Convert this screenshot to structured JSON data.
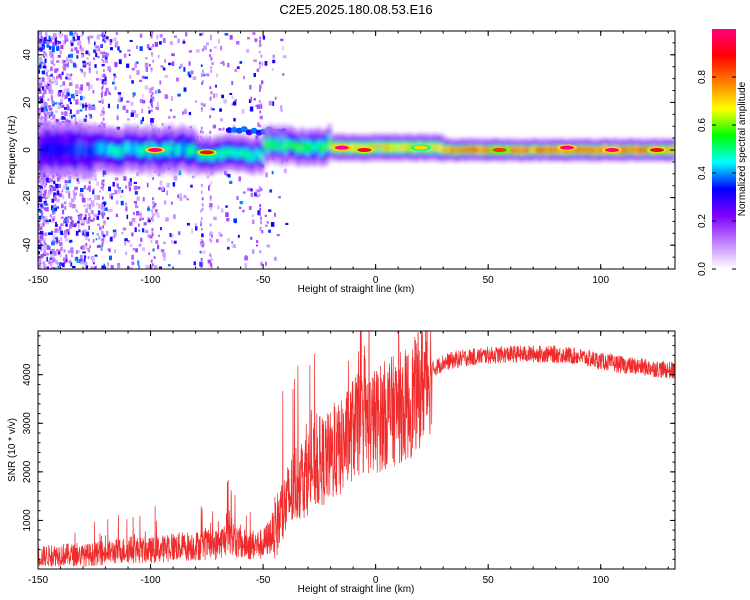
{
  "chart_data": [
    {
      "type": "heatmap",
      "title": "C2E5.2025.180.08.53.E16",
      "xlabel": "Height of straight line (km)",
      "ylabel": "Frequency (Hz)",
      "xlim": [
        -150,
        133
      ],
      "ylim": [
        -50,
        50
      ],
      "xticks": [
        -150,
        -100,
        -50,
        0,
        50,
        100
      ],
      "yticks": [
        -40,
        -20,
        0,
        20,
        40
      ],
      "colorbar": {
        "label": "Normalized spectral amplitude",
        "range": [
          0,
          1
        ],
        "ticks": [
          "0.0",
          "0.2",
          "0.4",
          "0.6",
          "0.8"
        ],
        "colormap": [
          "#ffffff",
          "#c080ff",
          "#8000ff",
          "#0000ff",
          "#00ffff",
          "#00ff00",
          "#ffff00",
          "#ff8000",
          "#ff0000",
          "#ff0080"
        ]
      },
      "band_segments": [
        {
          "x0": -150,
          "x1": -125,
          "center_hz": 0,
          "half_width_hz": 6,
          "peak": 0.35
        },
        {
          "x0": -125,
          "x1": -80,
          "center_hz": 0,
          "half_width_hz": 5,
          "peak": 0.45
        },
        {
          "x0": -80,
          "x1": -50,
          "center_hz": -2,
          "half_width_hz": 4,
          "peak": 0.5
        },
        {
          "x0": -50,
          "x1": -20,
          "center_hz": 2,
          "half_width_hz": 4,
          "peak": 0.55
        },
        {
          "x0": -20,
          "x1": 30,
          "center_hz": 1,
          "half_width_hz": 3,
          "peak": 0.7
        },
        {
          "x0": 30,
          "x1": 133,
          "center_hz": 0,
          "half_width_hz": 2.5,
          "peak": 0.8
        }
      ],
      "hot_spots": [
        {
          "x": -98,
          "y": 0,
          "v": 1.0
        },
        {
          "x": -75,
          "y": -1,
          "v": 0.9
        },
        {
          "x": -15,
          "y": 1,
          "v": 1.0
        },
        {
          "x": -5,
          "y": 0,
          "v": 0.9
        },
        {
          "x": 20,
          "y": 1,
          "v": 0.7
        },
        {
          "x": 55,
          "y": 0,
          "v": 0.85
        },
        {
          "x": 85,
          "y": 1,
          "v": 1.0
        },
        {
          "x": 105,
          "y": 0,
          "v": 1.0
        },
        {
          "x": 125,
          "y": 0,
          "v": 0.9
        }
      ],
      "side_band": {
        "x0": -65,
        "x1": -40,
        "center_hz": 8,
        "peak": 0.3
      }
    },
    {
      "type": "line",
      "xlabel": "Height of straight line (km)",
      "ylabel": "SNR (10 * v/v)",
      "xlim": [
        -150,
        133
      ],
      "ylim": [
        0,
        4900
      ],
      "xticks": [
        -150,
        -100,
        -50,
        0,
        50,
        100
      ],
      "yticks": [
        1000,
        2000,
        3000,
        4000
      ],
      "color": "#ef2b2b",
      "series": [
        {
          "x": [
            -150,
            -140,
            -130,
            -120,
            -110,
            -100,
            -90,
            -80,
            -70,
            -65,
            -60,
            -50,
            -45,
            -40,
            -35,
            -30,
            -25,
            -20,
            -15,
            -10,
            -5,
            0,
            5,
            10,
            15,
            18,
            22,
            25,
            30,
            40,
            50,
            60,
            70,
            80,
            90,
            100,
            110,
            120,
            133
          ],
          "y": [
            250,
            300,
            280,
            330,
            400,
            380,
            450,
            480,
            500,
            700,
            500,
            500,
            800,
            1300,
            1800,
            2000,
            2200,
            2300,
            2500,
            2900,
            3000,
            3050,
            3200,
            3300,
            3400,
            3600,
            3900,
            4100,
            4250,
            4350,
            4400,
            4420,
            4430,
            4420,
            4380,
            4280,
            4200,
            4150,
            4080
          ]
        }
      ]
    }
  ]
}
